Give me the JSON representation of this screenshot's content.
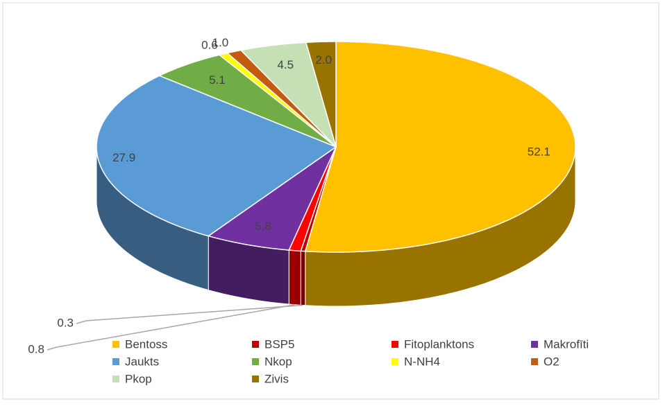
{
  "chart_data": {
    "type": "pie3d",
    "categories": [
      "Bentoss",
      "BSP5",
      "Fitoplanktons",
      "Makrofīti",
      "Jaukts",
      "Nkop",
      "N-NH4",
      "O2",
      "Pkop",
      "Zivis"
    ],
    "values": [
      52.1,
      0.3,
      0.8,
      5.8,
      27.9,
      5.1,
      0.6,
      1.0,
      4.5,
      2.0
    ],
    "value_labels": [
      "52.1",
      "0.3",
      "0.8",
      "5.8",
      "27.9",
      "5.1",
      "0.6",
      "1.0",
      "4.5",
      "2.0"
    ],
    "colors": [
      "#FFC000",
      "#C00000",
      "#FF0000",
      "#7030A0",
      "#5B9BD5",
      "#70AD47",
      "#FFFF00",
      "#C55A11",
      "#C5E0B4",
      "#997300"
    ],
    "legend": "bottom"
  }
}
